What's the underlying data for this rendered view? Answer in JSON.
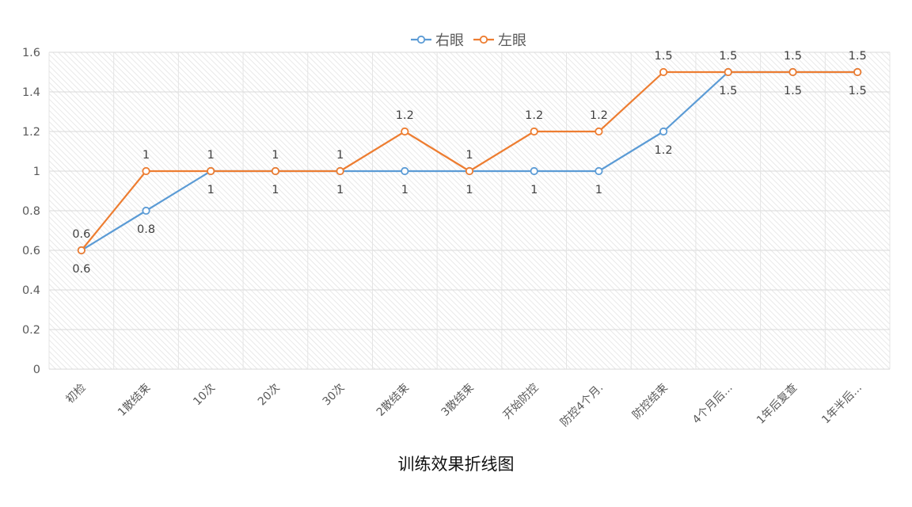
{
  "chart_data": {
    "type": "line",
    "title": "训练效果折线图",
    "categories": [
      "初检",
      "1散结束",
      "10次",
      "20次",
      "30次",
      "2散结束",
      "3散结束",
      "开始防控",
      "防控4个月.",
      "防控结束",
      "4个月后...",
      "1年后复查",
      "1年半后..."
    ],
    "series": [
      {
        "name": "右眼",
        "values": [
          0.6,
          0.8,
          1,
          1,
          1,
          1,
          1,
          1,
          1,
          1.2,
          1.5,
          1.5,
          1.5
        ],
        "color": "#5b9bd5"
      },
      {
        "name": "左眼",
        "values": [
          0.6,
          1,
          1,
          1,
          1,
          1.2,
          1,
          1.2,
          1.2,
          1.5,
          1.5,
          1.5,
          1.5
        ],
        "color": "#ed7d31"
      }
    ],
    "ylim": [
      0,
      1.6
    ],
    "yticks": [
      "0",
      "0.2",
      "0.4",
      "0.6",
      "0.8",
      "1",
      "1.2",
      "1.4",
      "1.6"
    ],
    "grid": true,
    "legend_position": "top",
    "data_labels": true
  }
}
